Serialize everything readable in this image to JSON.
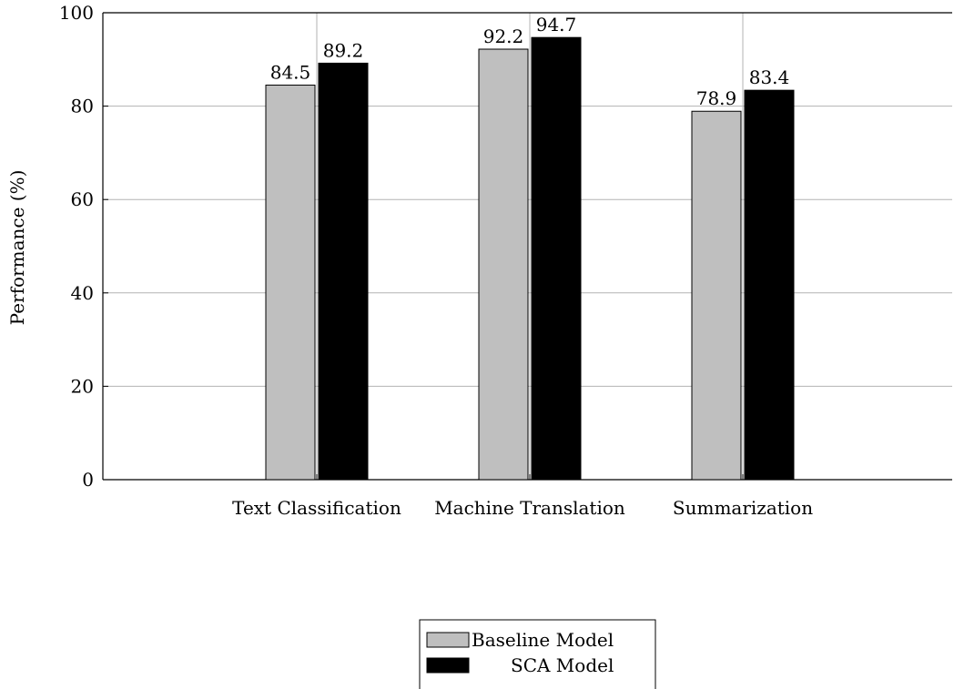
{
  "chart_data": {
    "type": "bar",
    "title": "",
    "xlabel": "",
    "ylabel": "Performance (%)",
    "categories": [
      "Text Classification",
      "Machine Translation",
      "Summarization"
    ],
    "series": [
      {
        "name": "Baseline Model",
        "values": [
          84.5,
          92.2,
          78.9
        ],
        "color": "#bfbfbf"
      },
      {
        "name": "SCA Model",
        "values": [
          89.2,
          94.7,
          83.4
        ],
        "color": "#000000"
      }
    ],
    "ylim": [
      0,
      100
    ],
    "yticks": [
      "0",
      "20",
      "40",
      "60",
      "80",
      "100"
    ],
    "grid": true,
    "legend_position": "bottom-center"
  }
}
